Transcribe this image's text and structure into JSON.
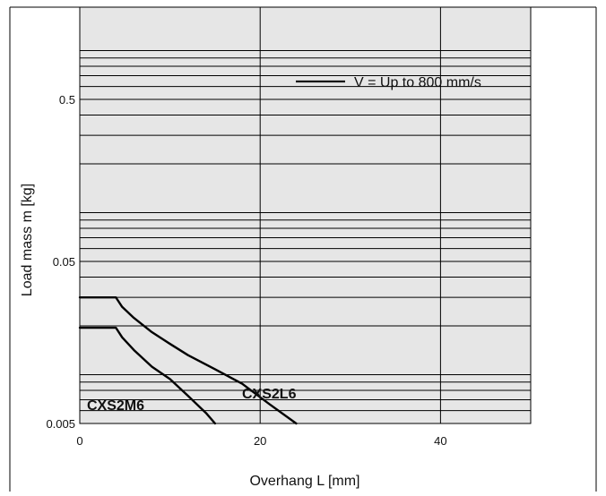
{
  "chart_data": {
    "type": "line",
    "title": "",
    "xlabel": "Overhang L [mm]",
    "ylabel": "Load mass m [kg]",
    "xlim": [
      0,
      50
    ],
    "ylim": [
      0.005,
      1.2
    ],
    "y_scale": "log",
    "x_ticks": [
      0,
      20,
      40
    ],
    "x_tick_labels": [
      "0",
      "20",
      "40"
    ],
    "y_ticks": [
      0.005,
      0.05,
      0.5
    ],
    "y_tick_labels": [
      "0.005",
      "0.05",
      "0.5"
    ],
    "grid": true,
    "legend": {
      "placement": "top-right",
      "entries": [
        {
          "label": "V = Up to 800 mm/s",
          "color": "#111111"
        }
      ]
    },
    "series": [
      {
        "name": "CXS2L6",
        "x": [
          0,
          4,
          4.7,
          6,
          8,
          10,
          12,
          15,
          18,
          21,
          24
        ],
        "y": [
          0.03,
          0.03,
          0.0262,
          0.0224,
          0.0183,
          0.0155,
          0.0132,
          0.0108,
          0.0088,
          0.0066,
          0.005
        ]
      },
      {
        "name": "CXS2M6",
        "x": [
          0,
          4,
          4.7,
          6,
          8,
          10,
          12,
          14,
          15
        ],
        "y": [
          0.0195,
          0.0195,
          0.017,
          0.0142,
          0.0112,
          0.0094,
          0.0074,
          0.0058,
          0.005
        ]
      }
    ],
    "colors": {
      "plot_background": "#e6e6e6",
      "grid": "#000000",
      "curve": "#000000"
    }
  }
}
